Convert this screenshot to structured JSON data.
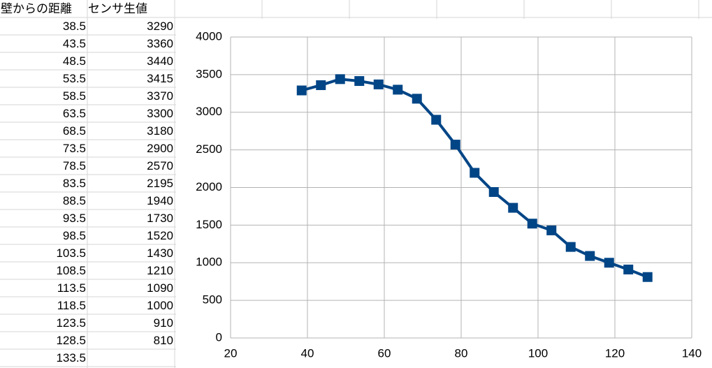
{
  "table": {
    "headers": [
      "壁からの距離",
      "センサ生値"
    ],
    "rows": [
      [
        38.5,
        3290
      ],
      [
        43.5,
        3360
      ],
      [
        48.5,
        3440
      ],
      [
        53.5,
        3415
      ],
      [
        58.5,
        3370
      ],
      [
        63.5,
        3300
      ],
      [
        68.5,
        3180
      ],
      [
        73.5,
        2900
      ],
      [
        78.5,
        2570
      ],
      [
        83.5,
        2195
      ],
      [
        88.5,
        1940
      ],
      [
        93.5,
        1730
      ],
      [
        98.5,
        1520
      ],
      [
        103.5,
        1430
      ],
      [
        108.5,
        1210
      ],
      [
        113.5,
        1090
      ],
      [
        118.5,
        1000
      ],
      [
        123.5,
        910
      ],
      [
        128.5,
        810
      ],
      [
        133.5
      ]
    ]
  },
  "chart_data": {
    "type": "line",
    "x": [
      38.5,
      43.5,
      48.5,
      53.5,
      58.5,
      63.5,
      68.5,
      73.5,
      78.5,
      83.5,
      88.5,
      93.5,
      98.5,
      103.5,
      108.5,
      113.5,
      118.5,
      123.5,
      128.5
    ],
    "series": [
      {
        "color": "#004586",
        "marker": "square",
        "values": [
          3290,
          3360,
          3440,
          3415,
          3370,
          3300,
          3180,
          2900,
          2570,
          2195,
          1940,
          1730,
          1520,
          1430,
          1210,
          1090,
          1000,
          910,
          810
        ]
      }
    ],
    "xlim": [
      20,
      140
    ],
    "xticks": [
      20,
      40,
      60,
      80,
      100,
      120,
      140
    ],
    "ylim": [
      0,
      4000
    ],
    "yticks": [
      0,
      500,
      1000,
      1500,
      2000,
      2500,
      3000,
      3500,
      4000
    ],
    "grid": true
  }
}
